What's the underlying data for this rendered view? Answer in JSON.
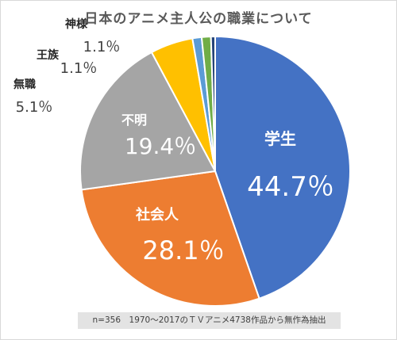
{
  "chart_data": {
    "type": "pie",
    "title": "日本のアニメ主人公の職業について",
    "slices": [
      {
        "label": "学生",
        "value_label": "44.7％",
        "value": 44.7,
        "color": "#4472c4"
      },
      {
        "label": "社会人",
        "value_label": "28.1％",
        "value": 28.1,
        "color": "#ed7d31"
      },
      {
        "label": "不明",
        "value_label": "19.4％",
        "value": 19.4,
        "color": "#a5a5a5"
      },
      {
        "label": "無職",
        "value_label": "5.1％",
        "value": 5.1,
        "color": "#ffc000"
      },
      {
        "label": "王族",
        "value_label": "1.1％",
        "value": 1.1,
        "color": "#5b9bd5"
      },
      {
        "label": "神様",
        "value_label": "1.1％",
        "value": 1.1,
        "color": "#70ad47"
      },
      {
        "label": "",
        "value_label": "",
        "value": 0.5,
        "color": "#264478"
      }
    ],
    "footnote": "n=356　1970～2017のＴＶアニメ4738作品から無作為抽出"
  }
}
